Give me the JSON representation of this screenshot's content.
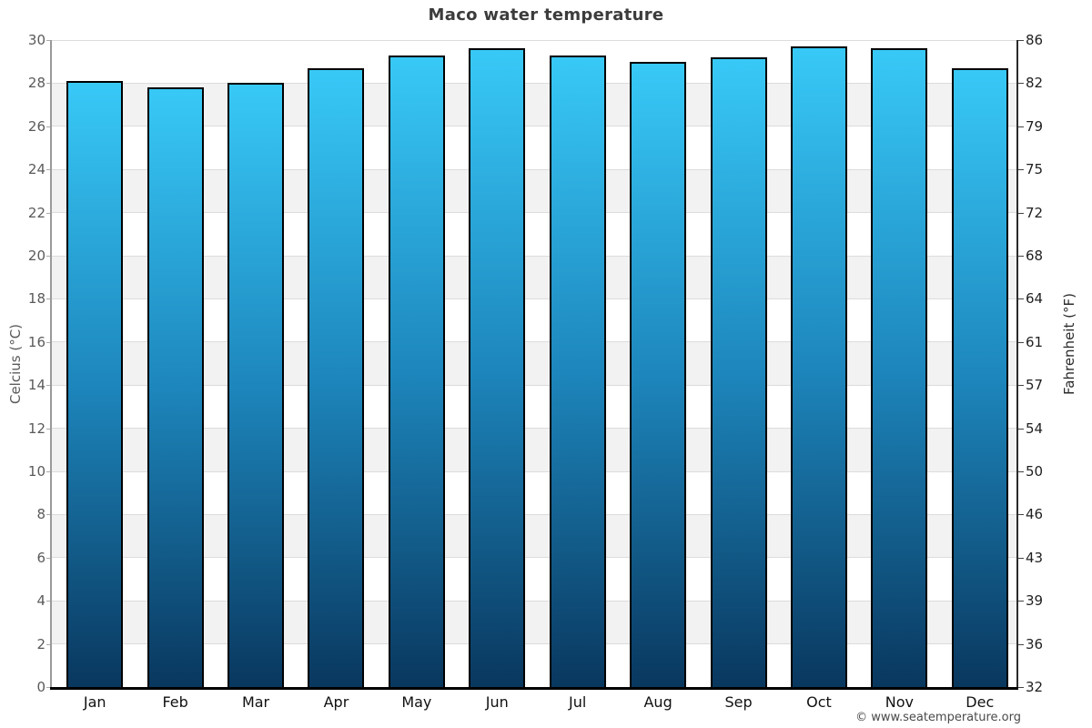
{
  "title": "Maco water temperature",
  "footer": "© www.seatemperature.org",
  "chart_data": {
    "type": "bar",
    "title": "Maco water temperature",
    "categories": [
      "Jan",
      "Feb",
      "Mar",
      "Apr",
      "May",
      "Jun",
      "Jul",
      "Aug",
      "Sep",
      "Oct",
      "Nov",
      "Dec"
    ],
    "values": [
      28.1,
      27.8,
      28.0,
      28.7,
      29.3,
      29.6,
      29.3,
      29.0,
      29.2,
      29.7,
      29.6,
      28.7
    ],
    "unit": "°C",
    "xlabel": "",
    "ylabel_left": "Celcius (°C)",
    "ylabel_right": "Fahrenheit (°F)",
    "ylim": [
      0,
      30
    ],
    "celsius_ticks": [
      0,
      2,
      4,
      6,
      8,
      10,
      12,
      14,
      16,
      18,
      20,
      22,
      24,
      26,
      28,
      30
    ],
    "fahrenheit_ticks": [
      32,
      36,
      39,
      43,
      46,
      50,
      54,
      57,
      61,
      64,
      68,
      72,
      75,
      79,
      82,
      86
    ],
    "legend_position": "none",
    "grid": "alternating horizontal bands every 2°C",
    "colors": {
      "bar_gradient_top": "#38c9f7",
      "bar_gradient_mid": "#1d86bc",
      "bar_gradient_bottom": "#09375e",
      "bar_border": "#000000",
      "band_light": "#ffffff",
      "band_shaded": "#f2f2f2",
      "gridline": "#dcdcdc",
      "bottom_axis": "#000000",
      "left_spine": "#9a9a9a",
      "right_spine": "#2b2b2b",
      "title_text": "#3c3c3c",
      "tick_text_left": "#5a5a5a",
      "tick_text_right": "#1f1f1f",
      "month_text": "#111111",
      "axis_label_left_text": "#5a5a5a",
      "axis_label_right_text": "#2b2b2b",
      "footer_text": "#4a4a4a"
    }
  }
}
